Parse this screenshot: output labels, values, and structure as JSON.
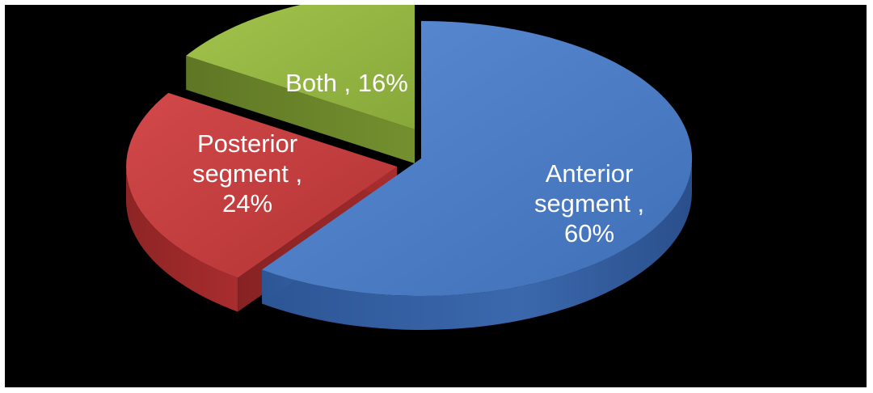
{
  "chart_data": {
    "type": "pie",
    "style": "3d-exploded",
    "categories": [
      "Anterior segment",
      "Posterior segment",
      "Both"
    ],
    "values": [
      60,
      24,
      16
    ],
    "value_unit": "%",
    "colors": [
      "#4a7cc4",
      "#c0393b",
      "#93b33f"
    ],
    "labels": [
      {
        "lines": [
          "Anterior",
          "segment ,",
          "60%"
        ]
      },
      {
        "lines": [
          "Posterior",
          "segment ,",
          "24%"
        ]
      },
      {
        "lines": [
          "Both  , 16%"
        ]
      }
    ],
    "title": "",
    "legend": "none"
  }
}
